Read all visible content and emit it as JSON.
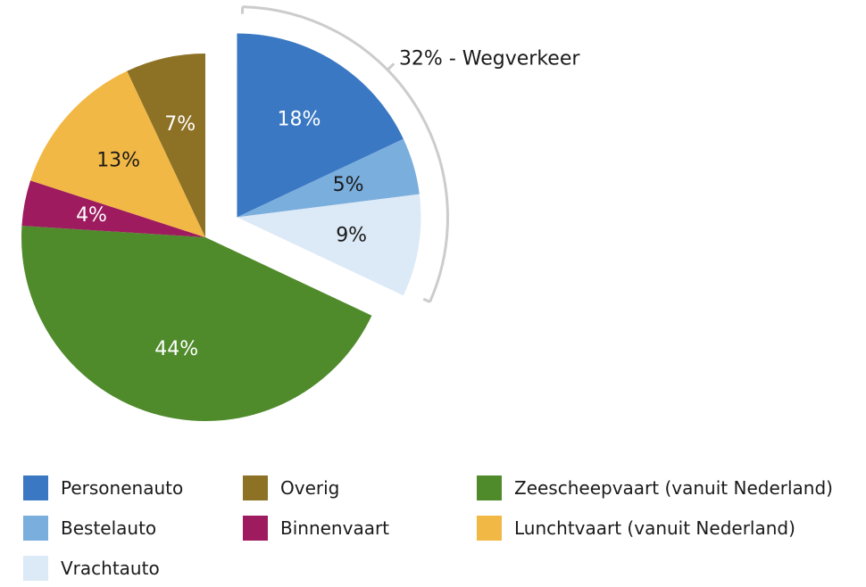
{
  "chart_data": {
    "type": "pie",
    "categories": [
      "Personenauto",
      "Bestelauto",
      "Vrachtauto",
      "Zeescheepvaart (vanuit Nederland)",
      "Binnenvaart",
      "Lunchtvaart (vanuit Nederland)",
      "Overig"
    ],
    "values": [
      18,
      5,
      9,
      44,
      4,
      13,
      7
    ],
    "labels": [
      "18%",
      "5%",
      "9%",
      "44%",
      "4%",
      "13%",
      "7%"
    ],
    "colors": [
      "#3a78c3",
      "#7aaedd",
      "#dce9f6",
      "#4f8a2b",
      "#9e1b5f",
      "#f2b845",
      "#8d7125"
    ],
    "label_colors": [
      "#ffffff",
      "#1a1a1a",
      "#1a1a1a",
      "#ffffff",
      "#ffffff",
      "#1a1a1a",
      "#ffffff"
    ],
    "exploded": [
      true,
      true,
      true,
      false,
      false,
      false,
      false
    ],
    "group_annotation": {
      "text": "32% - Wegverkeer",
      "members": [
        "Personenauto",
        "Bestelauto",
        "Vrachtauto"
      ]
    },
    "legend": {
      "placement": "bottom",
      "columns": [
        [
          "Personenauto",
          "Bestelauto",
          "Vrachtauto"
        ],
        [
          "Overig",
          "Binnenvaart"
        ],
        [
          "Zeescheepvaart (vanuit Nederland)",
          "Lunchtvaart (vanuit Nederland)"
        ]
      ]
    },
    "title": "",
    "bracket_color": "#cccccc"
  }
}
